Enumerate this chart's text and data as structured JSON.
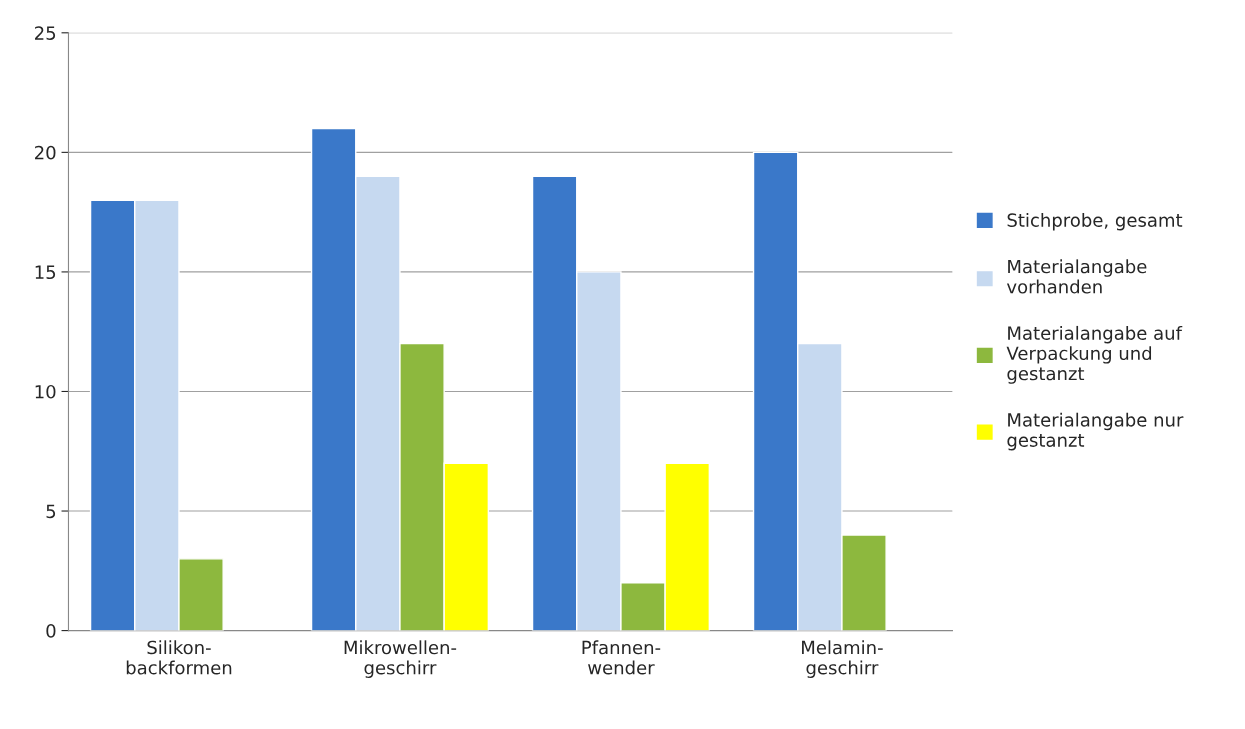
{
  "chart_data": {
    "type": "bar",
    "categories": [
      "Silikon-\nbackformen",
      "Mikrowellen-\ngeschirr",
      "Pfannen-\nwender",
      "Melamin-\ngeschirr"
    ],
    "series": [
      {
        "name": "Stichprobe, gesamt",
        "color": "#3a78c9",
        "values": [
          18,
          21,
          19,
          20
        ]
      },
      {
        "name": "Materialangabe\nvorhanden",
        "color": "#c6d9f0",
        "values": [
          18,
          19,
          15,
          12
        ]
      },
      {
        "name": "Materialangabe auf\nVerpackung und\ngestanzt",
        "color": "#8db83e",
        "values": [
          3,
          12,
          2,
          4
        ]
      },
      {
        "name": "Materialangabe nur\ngestanzt",
        "color": "#ffff00",
        "values": [
          null,
          7,
          7,
          null
        ]
      }
    ],
    "ylim": [
      0,
      25
    ],
    "yticks": [
      0,
      5,
      10,
      15,
      20,
      25
    ],
    "grid": "y",
    "legend": "right"
  }
}
